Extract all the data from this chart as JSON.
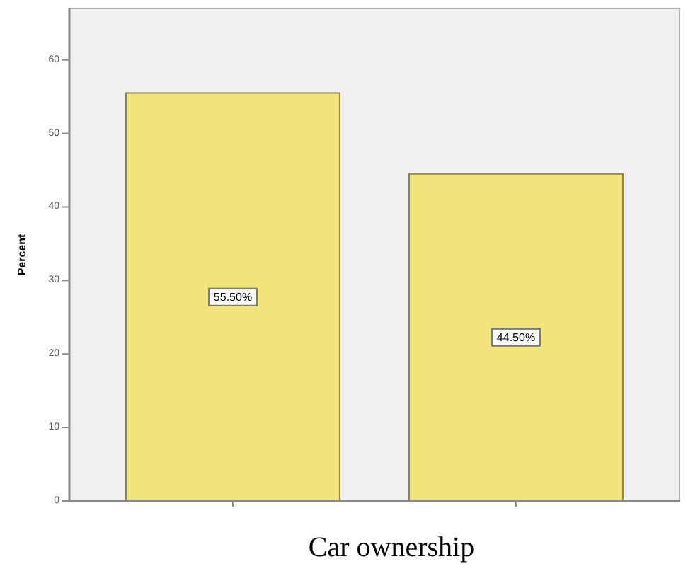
{
  "chart_data": {
    "type": "bar",
    "xlabel": "Car ownership",
    "ylabel": "Percent",
    "categories": [
      null,
      null
    ],
    "values": [
      55.5,
      44.5
    ],
    "value_labels": [
      "55.50%",
      "44.50%"
    ],
    "color": "#f0e47a",
    "ylim": [
      0,
      67
    ],
    "yticks": [
      0,
      10,
      20,
      30,
      40,
      50,
      60
    ],
    "grid": false
  }
}
